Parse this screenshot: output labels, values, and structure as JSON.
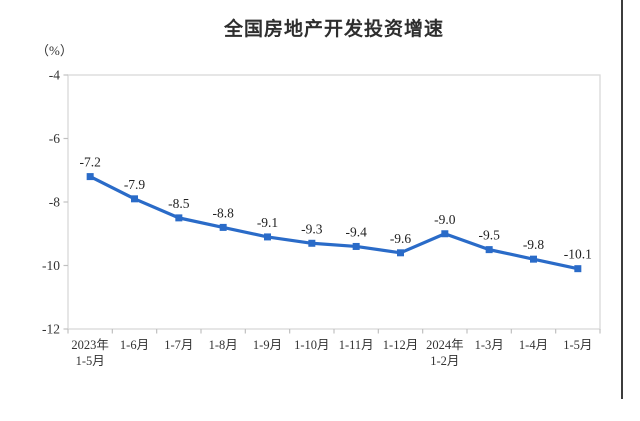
{
  "chart_data": {
    "type": "line",
    "title": "全国房地产开发投资增速",
    "unit_label": "（%）",
    "categories": [
      [
        "2023年",
        "1-5月"
      ],
      [
        "1-6月"
      ],
      [
        "1-7月"
      ],
      [
        "1-8月"
      ],
      [
        "1-9月"
      ],
      [
        "1-10月"
      ],
      [
        "1-11月"
      ],
      [
        "1-12月"
      ],
      [
        "2024年",
        "1-2月"
      ],
      [
        "1-3月"
      ],
      [
        "1-4月"
      ],
      [
        "1-5月"
      ]
    ],
    "values": [
      -7.2,
      -7.9,
      -8.5,
      -8.8,
      -9.1,
      -9.3,
      -9.4,
      -9.6,
      -9.0,
      -9.5,
      -9.8,
      -10.1
    ],
    "data_labels": [
      "-7.2",
      "-7.9",
      "-8.5",
      "-8.8",
      "-9.1",
      "-9.3",
      "-9.4",
      "-9.6",
      "-9.0",
      "-9.5",
      "-9.8",
      "-10.1"
    ],
    "xlabel": "",
    "ylabel": "（%）",
    "y_ticks": [
      -4,
      -6,
      -8,
      -10,
      -12
    ],
    "ylim": [
      -12,
      -4
    ],
    "grid": false,
    "legend": false,
    "marker": "square",
    "colors": {
      "line": "#2a6bc8",
      "marker": "#2a6bc8",
      "plot_border": "#d9d9d9",
      "tick_mark": "#c0c0c0",
      "tick_text": "#333333",
      "data_label_text": "#222222",
      "title_text": "#2e2e2e",
      "right_edge_line": "#3c3c3c",
      "background": "#ffffff"
    }
  }
}
